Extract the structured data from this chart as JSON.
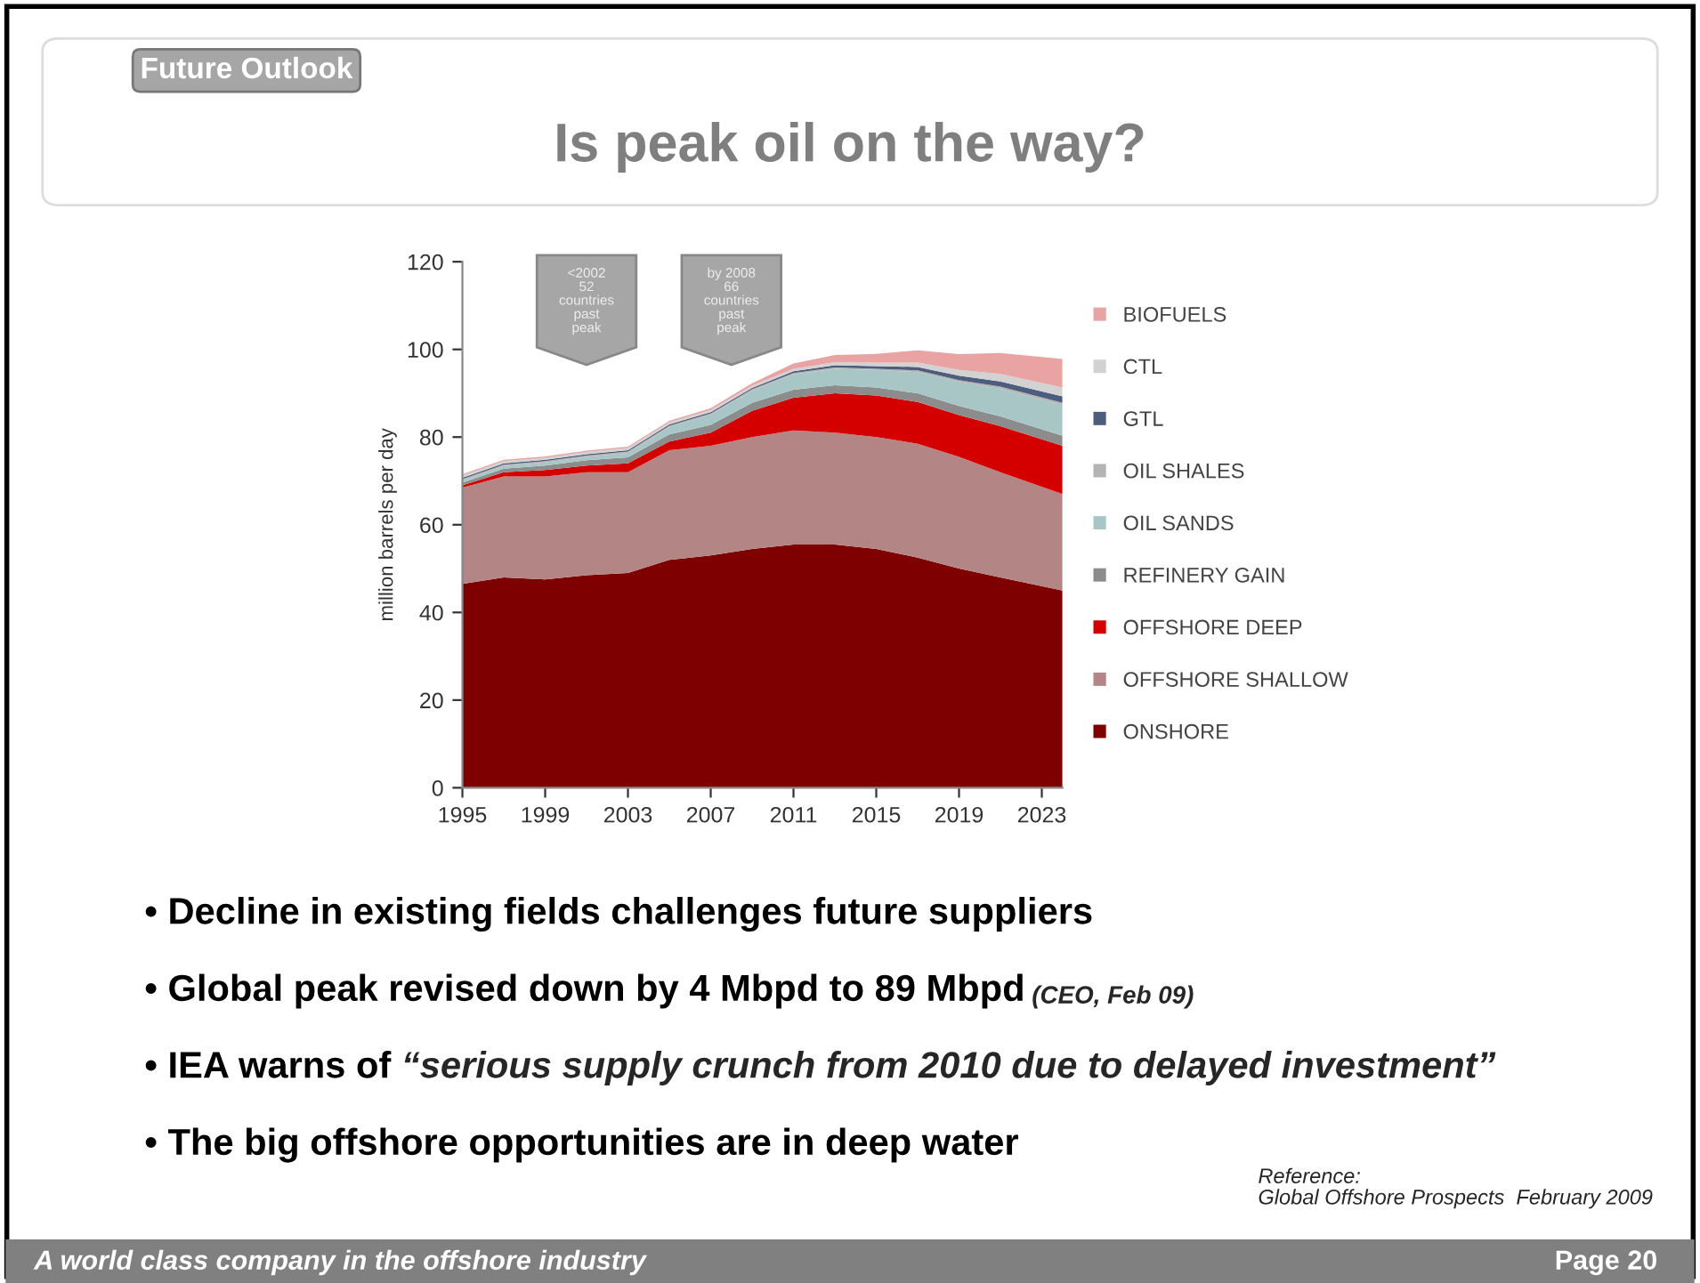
{
  "chart_data": {
    "type": "area",
    "stacked": true,
    "title": "Is peak oil on the way?",
    "ylabel": "million barrels per day",
    "x": [
      1995,
      1997,
      1999,
      2001,
      2003,
      2005,
      2007,
      2009,
      2011,
      2013,
      2015,
      2017,
      2019,
      2021,
      2024
    ],
    "xlim": [
      1995,
      2024
    ],
    "xticks": [
      1995,
      1999,
      2003,
      2007,
      2011,
      2015,
      2019,
      2023
    ],
    "ylim": [
      0,
      120
    ],
    "yticks": [
      0,
      20,
      40,
      60,
      80,
      100,
      120
    ],
    "grid": false,
    "legend": "right",
    "series": [
      {
        "name": "ONSHORE",
        "color": "#7f0000",
        "values": [
          46.5,
          48,
          47.5,
          48.5,
          49,
          52,
          53,
          54.5,
          55.5,
          55.5,
          54.5,
          52.5,
          50,
          48,
          45
        ]
      },
      {
        "name": "OFFSHORE SHALLOW",
        "color": "#b38585",
        "values": [
          22,
          23,
          23.5,
          23.5,
          23,
          25,
          25,
          25.5,
          26,
          25.5,
          25.5,
          26,
          25.5,
          24,
          22
        ]
      },
      {
        "name": "OFFSHORE DEEP",
        "color": "#d40000",
        "values": [
          0.5,
          1,
          1.5,
          1.5,
          2,
          2,
          3,
          6,
          7.5,
          9,
          9.5,
          9.5,
          9.5,
          10.5,
          11
        ]
      },
      {
        "name": "REFINERY GAIN",
        "color": "#8c8c8c",
        "values": [
          0.6,
          0.8,
          1,
          1.2,
          1.4,
          1.6,
          1.8,
          1.8,
          1.8,
          1.8,
          1.8,
          2,
          2.1,
          2.2,
          2.3
        ]
      },
      {
        "name": "OIL SANDS",
        "color": "#a9c6c6",
        "values": [
          0.5,
          0.6,
          0.7,
          0.8,
          1,
          1.7,
          2.3,
          2.8,
          3.5,
          3.8,
          4,
          4.8,
          5.5,
          6.3,
          7
        ]
      },
      {
        "name": "OIL SHALES",
        "color": "#b4b4b4",
        "values": [
          0.3,
          0.3,
          0.3,
          0.3,
          0.3,
          0.3,
          0.3,
          0.3,
          0.3,
          0.3,
          0.3,
          0.4,
          0.4,
          0.5,
          0.5
        ]
      },
      {
        "name": "GTL",
        "color": "#4d5d7d",
        "values": [
          0.3,
          0.3,
          0.3,
          0.3,
          0.3,
          0.3,
          0.3,
          0.3,
          0.4,
          0.5,
          0.6,
          0.8,
          1,
          1.2,
          1.5
        ]
      },
      {
        "name": "CTL",
        "color": "#d2d2d2",
        "values": [
          0.5,
          0.5,
          0.5,
          0.5,
          0.5,
          0.5,
          0.5,
          0.5,
          0.6,
          0.7,
          0.8,
          1,
          1.3,
          1.7,
          2
        ]
      },
      {
        "name": "BIOFUELS",
        "color": "#e9a3a3",
        "values": [
          0.3,
          0.3,
          0.3,
          0.3,
          0.3,
          0.3,
          0.4,
          0.6,
          1.2,
          1.6,
          2,
          2.8,
          3.6,
          4.8,
          6.5
        ]
      }
    ],
    "annotations": [
      "Future Outlook",
      "<2002\n52\ncountries\npast\npeak",
      "by 2008\n66\ncountries\npast\npeak",
      "• Decline in existing fields challenges future suppliers",
      "• Global peak revised down by 4 Mbpd to 89 Mbpd",
      "(CEO, Feb 09)",
      "• IEA warns of",
      "“serious supply crunch from 2010 due to delayed investment”",
      "• The big offshore opportunities are in deep water",
      "Reference:\nGlobal Offshore Prospects  February 2009",
      "A world class company in the offshore industry",
      "Page 20"
    ]
  }
}
